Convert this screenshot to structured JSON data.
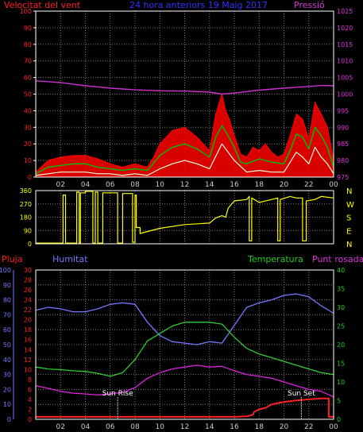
{
  "colors": {
    "background": "#000000",
    "frame": "#ffffff",
    "grid": "#7a7a7a",
    "wind_avg": "#00c000",
    "wind_gust": "#ff0000",
    "wind_min": "#e8ffe0",
    "pressure": "#cc33cc",
    "direction": "#ffff00",
    "rain": "#ff2020",
    "humidity": "#7777ff",
    "temperature": "#33cc33",
    "dewpoint": "#dd22dd",
    "label_wind": "#ff2020",
    "label_title": "#3333ff",
    "label_pressure": "#dd33dd",
    "label_rain": "#ff2020",
    "label_humidity": "#7777ff",
    "label_temperature": "#22cc22",
    "label_dewpoint": "#dd33dd",
    "label_compass": "#ffff00",
    "label_sun": "#ffffff"
  },
  "chart_data": [
    {
      "type": "line",
      "title": "24 hora anteriors  19 Maig 2017",
      "left_axis_label": "Velocitat del vent",
      "right_axis_label": "Pressió",
      "x_ticks": [
        "02",
        "04",
        "06",
        "08",
        "10",
        "12",
        "14",
        "16",
        "18",
        "20",
        "22",
        "00"
      ],
      "left_ticks": [
        "0",
        "10",
        "20",
        "30",
        "40",
        "50",
        "60",
        "70",
        "80",
        "90",
        "100"
      ],
      "right_ticks": [
        "975",
        "980",
        "985",
        "990",
        "995",
        "1000",
        "1005",
        "1010",
        "1015",
        "1020",
        "1025"
      ],
      "left_range": [
        0,
        100
      ],
      "right_range": [
        975,
        1025
      ],
      "grid": true,
      "x_range_hours": [
        0,
        24
      ],
      "series": [
        {
          "key": "gust",
          "x": [
            0,
            1,
            1.5,
            2,
            3,
            4,
            5,
            6,
            7,
            7.5,
            8,
            9,
            9.5,
            10,
            11,
            12,
            13,
            14,
            14.5,
            15,
            15.3,
            15.6,
            16,
            16.5,
            17,
            17.5,
            18,
            18.5,
            19,
            19.5,
            20,
            20.5,
            21,
            21.5,
            22,
            22.5,
            23,
            23.5,
            24
          ],
          "values": [
            3,
            10,
            11,
            12,
            13,
            13,
            11,
            8,
            6,
            7,
            8,
            6,
            12,
            20,
            28,
            30,
            24,
            16,
            38,
            50,
            40,
            35,
            25,
            14,
            12,
            18,
            16,
            20,
            15,
            12,
            14,
            25,
            38,
            35,
            23,
            45,
            38,
            30,
            10
          ]
        },
        {
          "key": "avg",
          "x": [
            0,
            1,
            2,
            3,
            4,
            5,
            6,
            7,
            8,
            9,
            10,
            11,
            12,
            13,
            14,
            14.5,
            15,
            15.5,
            16,
            16.5,
            17,
            18,
            19,
            20,
            20.5,
            21,
            21.5,
            22,
            22.5,
            23,
            23.5,
            24
          ],
          "values": [
            2,
            6,
            7,
            8,
            8,
            6,
            5,
            4,
            5,
            4,
            13,
            18,
            20,
            17,
            12,
            24,
            31,
            25,
            18,
            9,
            8,
            11,
            9,
            8,
            16,
            26,
            24,
            17,
            30,
            25,
            18,
            6
          ]
        },
        {
          "key": "min",
          "x": [
            0,
            1,
            2,
            3,
            4,
            5,
            6,
            7,
            8,
            9,
            10,
            11,
            12,
            13,
            14,
            15,
            15.5,
            16,
            17,
            18,
            19,
            20,
            21,
            21.5,
            22,
            22.5,
            23,
            23.5,
            24
          ],
          "values": [
            1,
            2,
            3,
            3,
            3,
            2,
            2,
            1,
            2,
            1,
            5,
            8,
            10,
            8,
            5,
            20,
            15,
            10,
            3,
            4,
            3,
            3,
            15,
            12,
            8,
            18,
            12,
            8,
            2
          ]
        },
        {
          "key": "pressure",
          "axis": "right",
          "x": [
            0,
            2,
            4,
            6,
            8,
            10,
            12,
            14,
            15,
            16,
            18,
            20,
            22,
            23,
            24
          ],
          "values": [
            1004,
            1003.5,
            1002.5,
            1001.8,
            1001.3,
            1001,
            1000.9,
            1000.6,
            1000,
            1000.3,
            1001.2,
            1001.8,
            1002.3,
            1002.6,
            1002.5
          ]
        }
      ]
    },
    {
      "type": "line",
      "left_ticks": [
        "0",
        "90",
        "180",
        "270",
        "360"
      ],
      "right_ticks": [
        "N",
        "E",
        "S",
        "W",
        "N"
      ],
      "left_range": [
        0,
        360
      ],
      "grid": true,
      "x_range_hours": [
        0,
        24
      ],
      "series": [
        {
          "key": "direction",
          "x": [
            0,
            2.2,
            2.2,
            2.4,
            2.4,
            3.3,
            3.3,
            3.5,
            3.5,
            3.6,
            3.6,
            4,
            4,
            4.6,
            4.6,
            4.8,
            4.8,
            5,
            5,
            5.4,
            5.4,
            6.6,
            6.6,
            7,
            7,
            7.8,
            7.8,
            8,
            8,
            8.1,
            8.1,
            8.4,
            8.4,
            10,
            12,
            14,
            14.5,
            15,
            15.3,
            15.5,
            16,
            17,
            17.2,
            17.2,
            17.4,
            17.4,
            18,
            19,
            19.5,
            19.5,
            19.7,
            19.7,
            20.5,
            21,
            21.5,
            21.5,
            21.8,
            21.8,
            22.5,
            23,
            24
          ],
          "values": [
            5,
            5,
            330,
            330,
            5,
            5,
            350,
            350,
            5,
            5,
            345,
            345,
            355,
            355,
            5,
            5,
            350,
            350,
            5,
            5,
            345,
            345,
            5,
            5,
            340,
            340,
            10,
            10,
            330,
            330,
            110,
            110,
            70,
            105,
            130,
            140,
            175,
            190,
            180,
            240,
            290,
            300,
            320,
            20,
            20,
            310,
            280,
            300,
            310,
            20,
            20,
            300,
            320,
            310,
            310,
            20,
            20,
            290,
            300,
            320,
            310
          ]
        }
      ]
    },
    {
      "type": "line",
      "left_axis_label": "Pluja",
      "humidity_axis_label": "Humitat",
      "right_axis_label": "Temperatura",
      "right_axis_label2": "Punt rosada",
      "x_ticks": [
        "02",
        "04",
        "06",
        "08",
        "10",
        "12",
        "14",
        "16",
        "18",
        "20",
        "22",
        "00"
      ],
      "humidity_ticks": [
        "0",
        "10",
        "20",
        "30",
        "40",
        "50",
        "60",
        "70",
        "80",
        "90",
        "100"
      ],
      "rain_ticks": [
        "0",
        "2",
        "4",
        "6",
        "8",
        "10",
        "12",
        "14",
        "16",
        "18",
        "20",
        "22",
        "24",
        "26",
        "28",
        "30"
      ],
      "temperature_ticks": [
        "0",
        "5",
        "10",
        "15",
        "20",
        "25",
        "30",
        "35",
        "40"
      ],
      "humidity_range": [
        0,
        100
      ],
      "rain_range": [
        0,
        30
      ],
      "temperature_range": [
        0,
        40
      ],
      "grid": true,
      "x_range_hours": [
        0,
        24
      ],
      "annotations": [
        {
          "text": "Sun Rise",
          "x_hour": 6.6
        },
        {
          "text": "Sun Set",
          "x_hour": 21.4
        }
      ],
      "series": [
        {
          "key": "humidity",
          "axis": "humidity",
          "x": [
            0,
            1,
            2,
            3,
            4,
            5,
            6,
            7,
            8,
            9,
            10,
            11,
            12,
            13,
            14,
            15,
            16,
            17,
            18,
            19,
            20,
            21,
            22,
            23,
            24
          ],
          "values": [
            73,
            75,
            74,
            72,
            72,
            74,
            77,
            78,
            77,
            65,
            56,
            52,
            51,
            50,
            52,
            51,
            63,
            75,
            78,
            80,
            83,
            84,
            82,
            76,
            71
          ]
        },
        {
          "key": "temperature",
          "axis": "temperature",
          "x": [
            0,
            1,
            2,
            3,
            4,
            5,
            6,
            7,
            8,
            9,
            10,
            11,
            12,
            13,
            14,
            15,
            16,
            17,
            18,
            19,
            20,
            21,
            22,
            23,
            24
          ],
          "values": [
            14,
            13.5,
            13.3,
            13,
            12.8,
            12.3,
            11.5,
            12.5,
            16,
            21,
            23,
            25,
            26,
            26,
            26,
            25.5,
            22,
            19,
            17.5,
            16.5,
            15.5,
            14.5,
            13.5,
            12.5,
            12
          ]
        },
        {
          "key": "dewpoint",
          "axis": "temperature",
          "x": [
            0,
            1,
            2,
            3,
            4,
            5,
            6,
            7,
            8,
            9,
            10,
            11,
            12,
            13,
            14,
            15,
            16,
            17,
            18,
            19,
            20,
            21,
            22,
            23,
            24
          ],
          "values": [
            9,
            8.3,
            7.5,
            7,
            6.8,
            6.5,
            6.8,
            7.2,
            8.5,
            11,
            12.5,
            13.5,
            14,
            14.5,
            14,
            14.2,
            13,
            12,
            11.5,
            11,
            10,
            9,
            8,
            7.5,
            6
          ]
        },
        {
          "key": "rain",
          "axis": "rain",
          "x": [
            0,
            16,
            17,
            17.5,
            17.6,
            18,
            18.5,
            19,
            20,
            21,
            21.5,
            22,
            23,
            23.6,
            23.6,
            24
          ],
          "values": [
            0.5,
            0.5,
            0.6,
            0.9,
            1.5,
            2,
            2.3,
            3,
            3.5,
            3.8,
            3.9,
            4,
            4.2,
            4.2,
            0.5,
            0.5
          ]
        }
      ]
    }
  ]
}
